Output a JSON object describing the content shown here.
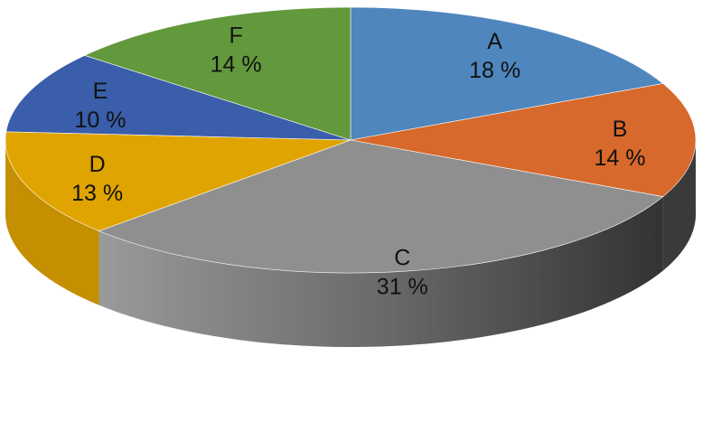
{
  "chart_data": {
    "type": "pie",
    "title": "",
    "style": "3d",
    "slices": [
      {
        "label": "A",
        "value": 18,
        "display": "18 %",
        "color": "#4f86bd",
        "side_color": "#3d6a98"
      },
      {
        "label": "B",
        "value": 14,
        "display": "14 %",
        "color": "#d6692b",
        "side_color": "#3a3a3a"
      },
      {
        "label": "C",
        "value": 31,
        "display": "31 %",
        "color": "#8f8f8f",
        "side_color": "#5c5c5c"
      },
      {
        "label": "D",
        "value": 13,
        "display": "13 %",
        "color": "#e0a400",
        "side_color": "#c48f00"
      },
      {
        "label": "E",
        "value": 10,
        "display": "10 %",
        "color": "#3a5ea9",
        "side_color": "#2c4a86"
      },
      {
        "label": "F",
        "value": 14,
        "display": "14 %",
        "color": "#62993c",
        "side_color": "#4a7a2c"
      }
    ]
  }
}
